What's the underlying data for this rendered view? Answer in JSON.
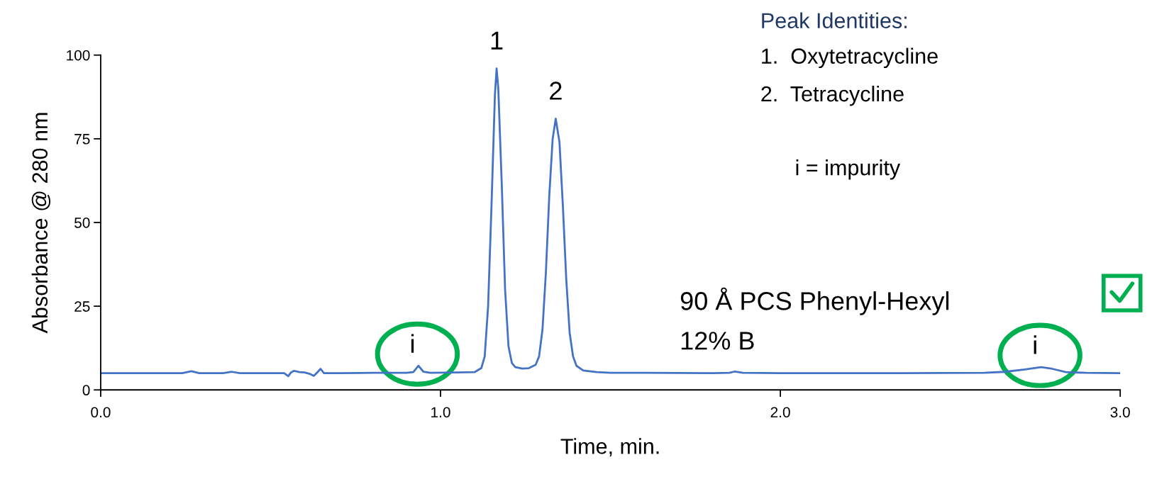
{
  "chart_data": {
    "type": "line",
    "xlabel": "Time, min.",
    "ylabel": "Absorbance @ 280 nm",
    "xlim": [
      0,
      3
    ],
    "ylim": [
      0,
      100
    ],
    "xticks": [
      {
        "value": 0,
        "label": "0.0"
      },
      {
        "value": 1,
        "label": "1.0"
      },
      {
        "value": 2,
        "label": "2.0"
      },
      {
        "value": 3,
        "label": "3.0"
      }
    ],
    "yticks": [
      0,
      25,
      50,
      75,
      100
    ],
    "grid": false,
    "marker": "none",
    "line_style": "solid",
    "series": [
      {
        "color": "#4472c4",
        "x": [
          0,
          0.24,
          0.267,
          0.29,
          0.36,
          0.386,
          0.41,
          0.54,
          0.552,
          0.56,
          0.569,
          0.585,
          0.6,
          0.615,
          0.627,
          0.637,
          0.647,
          0.657,
          0.7,
          0.8,
          0.9,
          0.92,
          0.935,
          0.95,
          0.97,
          1.05,
          1.1,
          1.12,
          1.13,
          1.14,
          1.15,
          1.16,
          1.165,
          1.17,
          1.18,
          1.19,
          1.2,
          1.21,
          1.22,
          1.24,
          1.26,
          1.28,
          1.29,
          1.3,
          1.31,
          1.32,
          1.33,
          1.339,
          1.35,
          1.36,
          1.37,
          1.38,
          1.39,
          1.4,
          1.42,
          1.46,
          1.5,
          1.6,
          1.8,
          1.85,
          1.866,
          1.89,
          2.0,
          2.3,
          2.6,
          2.66,
          2.72,
          2.767,
          2.8,
          2.84,
          2.9,
          3.0
        ],
        "values": [
          5,
          5,
          5.6,
          5,
          5,
          5.4,
          5,
          5,
          4.1,
          5.2,
          5.7,
          5.3,
          5.2,
          4.8,
          4.2,
          5.2,
          6.3,
          5,
          5,
          5.1,
          5.1,
          5.3,
          7.2,
          5.4,
          5.1,
          5.2,
          5.3,
          6.5,
          10,
          25,
          55,
          88,
          96,
          90,
          62,
          30,
          13,
          8,
          6.8,
          6.4,
          6.5,
          7.5,
          10,
          18,
          35,
          58,
          75,
          81,
          74,
          55,
          33,
          17,
          10,
          7.2,
          5.8,
          5.3,
          5.1,
          5.1,
          5,
          5.1,
          5.5,
          5.1,
          5,
          5,
          5.1,
          5.4,
          6.1,
          6.8,
          6.3,
          5.3,
          5.1,
          5
        ]
      }
    ],
    "annotations": [
      {
        "text": "1",
        "x": 1.165,
        "y": 96
      },
      {
        "text": "2",
        "x": 1.339,
        "y": 81
      },
      {
        "text": "i",
        "x": 0.935,
        "y": 7.2
      },
      {
        "text": "i",
        "x": 2.767,
        "y": 6.8
      },
      "Peak Identities:",
      "1.  Oxytetracycline",
      "2.  Tetracycline",
      "i = impurity",
      "90 Å PCS Phenyl-Hexyl",
      "12% B"
    ]
  }
}
